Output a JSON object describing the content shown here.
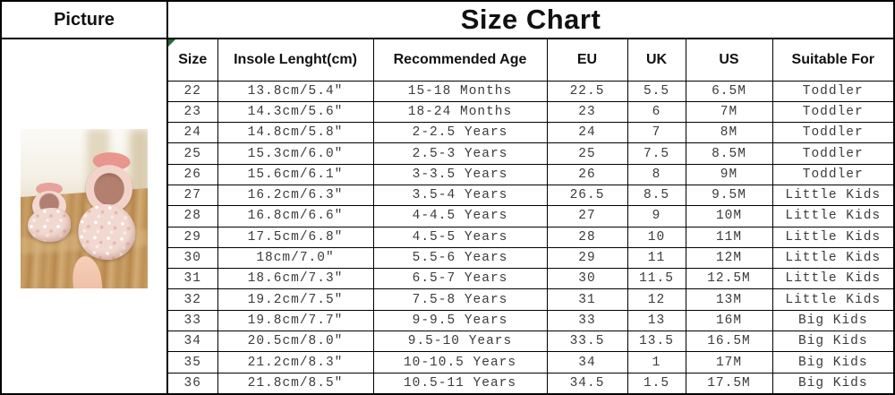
{
  "title": "Size Chart",
  "picture_panel": {
    "header": "Picture",
    "photo_description": "two pink sequined girls shoes with bows standing on a wooden stool, a hand holding one shoe"
  },
  "icons": {
    "excel_error_marker": "green-corner-triangle"
  },
  "colors": {
    "border": "#000000",
    "header_text": "#111111",
    "body_text": "#3b3b3b",
    "error_marker_green": "#236b3a",
    "wood_brown": "#c49a62",
    "shoe_pink": "#f1d8d0"
  },
  "table": {
    "columns": [
      "Size",
      "Insole Lenght(cm)",
      "Recommended Age",
      "EU",
      "UK",
      "US",
      "Suitable For"
    ],
    "rows": [
      [
        "22",
        "13.8cm/5.4″",
        "15-18 Months",
        "22.5",
        "5.5",
        "6.5M",
        "Toddler"
      ],
      [
        "23",
        "14.3cm/5.6″",
        "18-24 Months",
        "23",
        "6",
        "7M",
        "Toddler"
      ],
      [
        "24",
        "14.8cm/5.8″",
        "2-2.5 Years",
        "24",
        "7",
        "8M",
        "Toddler"
      ],
      [
        "25",
        "15.3cm/6.0″",
        "2.5-3 Years",
        "25",
        "7.5",
        "8.5M",
        "Toddler"
      ],
      [
        "26",
        "15.6cm/6.1″",
        "3-3.5 Years",
        "26",
        "8",
        "9M",
        "Toddler"
      ],
      [
        "27",
        "16.2cm/6.3″",
        "3.5-4 Years",
        "26.5",
        "8.5",
        "9.5M",
        "Little Kids"
      ],
      [
        "28",
        "16.8cm/6.6″",
        "4-4.5 Years",
        "27",
        "9",
        "10M",
        "Little Kids"
      ],
      [
        "29",
        "17.5cm/6.8″",
        "4.5-5 Years",
        "28",
        "10",
        "11M",
        "Little Kids"
      ],
      [
        "30",
        "18cm/7.0″",
        "5.5-6 Years",
        "29",
        "11",
        "12M",
        "Little Kids"
      ],
      [
        "31",
        "18.6cm/7.3″",
        "6.5-7 Years",
        "30",
        "11.5",
        "12.5M",
        "Little Kids"
      ],
      [
        "32",
        "19.2cm/7.5″",
        "7.5-8 Years",
        "31",
        "12",
        "13M",
        "Little Kids"
      ],
      [
        "33",
        "19.8cm/7.7″",
        "9-9.5 Years",
        "33",
        "13",
        "16M",
        "Big Kids"
      ],
      [
        "34",
        "20.5cm/8.0″",
        "9.5-10 Years",
        "33.5",
        "13.5",
        "16.5M",
        "Big Kids"
      ],
      [
        "35",
        "21.2cm/8.3″",
        "10-10.5 Years",
        "34",
        "1",
        "17M",
        "Big Kids"
      ],
      [
        "36",
        "21.8cm/8.5″",
        "10.5-11 Years",
        "34.5",
        "1.5",
        "17.5M",
        "Big Kids"
      ]
    ]
  }
}
